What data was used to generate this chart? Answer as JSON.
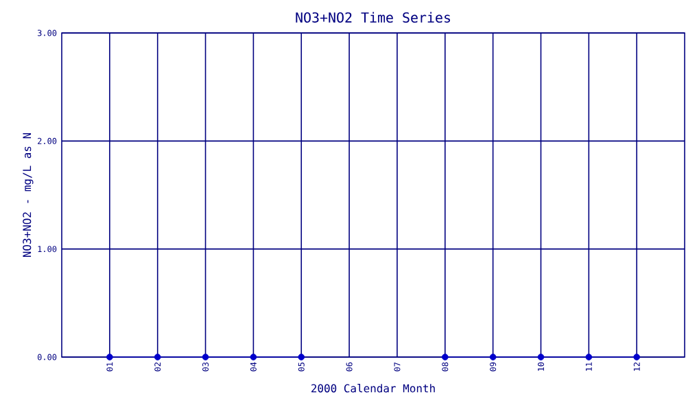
{
  "chart_data": {
    "type": "line",
    "title": "NO3+NO2 Time Series",
    "xlabel": "2000 Calendar Month",
    "ylabel": "NO3+NO2 - mg/L as N",
    "categories": [
      "01",
      "02",
      "03",
      "04",
      "05",
      "06",
      "07",
      "08",
      "09",
      "10",
      "11",
      "12"
    ],
    "series": [
      {
        "color": "#0000cc",
        "values": [
          0,
          0,
          0,
          0,
          0,
          null,
          null,
          0,
          0,
          0,
          0,
          0
        ]
      }
    ],
    "ylim": [
      0,
      3
    ],
    "yticks": [
      {
        "value": 0,
        "label": "0.00"
      },
      {
        "value": 1,
        "label": "1.00"
      },
      {
        "value": 2,
        "label": "2.00"
      },
      {
        "value": 3,
        "label": "3.00"
      }
    ],
    "grid": true,
    "marker": "circle",
    "line_style": "solid"
  }
}
